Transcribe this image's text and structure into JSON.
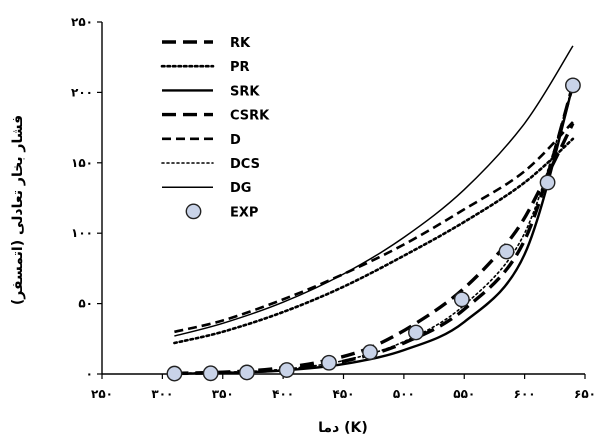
{
  "chart_data": {
    "type": "line",
    "xlabel": "دما (K)",
    "ylabel": "فشار بخار تعادلی (اتمسفر)",
    "xlim": [
      250,
      650
    ],
    "ylim": [
      0,
      250
    ],
    "x_ticks": [
      250,
      300,
      350,
      400,
      450,
      500,
      550,
      600,
      650
    ],
    "x_tick_labels": [
      "۲۵۰",
      "۳۰۰",
      "۳۵۰",
      "۴۰۰",
      "۴۵۰",
      "۵۰۰",
      "۵۵۰",
      "۶۰۰",
      "۶۵۰"
    ],
    "y_ticks": [
      0,
      50,
      100,
      150,
      200,
      250
    ],
    "y_tick_labels": [
      "۰",
      "۵۰",
      "۱۰۰",
      "۱۵۰",
      "۲۰۰",
      "۲۵۰"
    ],
    "grid": false,
    "legend": "top-left",
    "series": [
      {
        "name": "RK",
        "style": "long-dash",
        "stroke_weight": "bold",
        "x": [
          310,
          350,
          390,
          430,
          470,
          510,
          550,
          590,
          615,
          640
        ],
        "y": [
          0.5,
          1.3,
          3.5,
          8.5,
          18,
          36,
          61,
          98,
          135,
          178
        ]
      },
      {
        "name": "PR",
        "style": "dotted",
        "stroke_weight": "bold",
        "x": [
          310,
          350,
          400,
          450,
          500,
          550,
          600,
          640
        ],
        "y": [
          22,
          30,
          44,
          62,
          84,
          108,
          136,
          167
        ]
      },
      {
        "name": "SRK",
        "style": "solid",
        "stroke_weight": "bold",
        "x": [
          310,
          350,
          400,
          450,
          500,
          550,
          600,
          640
        ],
        "y": [
          0.3,
          0.8,
          2.5,
          7,
          17,
          37,
          85,
          205
        ]
      },
      {
        "name": "CSRK",
        "style": "long-dash",
        "stroke_weight": "bold",
        "x": [
          310,
          350,
          400,
          450,
          500,
          550,
          600,
          640
        ],
        "y": [
          0.4,
          1,
          3.2,
          9,
          22,
          46,
          95,
          205
        ]
      },
      {
        "name": "D",
        "style": "dashed",
        "stroke_weight": "bold",
        "x": [
          310,
          350,
          400,
          450,
          500,
          550,
          600,
          640
        ],
        "y": [
          30,
          38,
          53,
          71,
          92,
          117,
          144,
          179
        ]
      },
      {
        "name": "DCS",
        "style": "dotted",
        "stroke_weight": "normal",
        "x": [
          310,
          350,
          400,
          450,
          500,
          550,
          600,
          640
        ],
        "y": [
          0.5,
          1.2,
          3.4,
          9.5,
          23,
          49,
          100,
          205
        ]
      },
      {
        "name": "DG",
        "style": "solid",
        "stroke_weight": "normal",
        "x": [
          310,
          350,
          400,
          450,
          500,
          550,
          600,
          640
        ],
        "y": [
          27,
          36,
          51,
          71,
          97,
          131,
          178,
          233
        ]
      },
      {
        "name": "EXP",
        "style": "markers",
        "x": [
          310,
          340,
          370,
          403,
          438,
          472,
          510,
          548,
          585,
          619,
          640
        ],
        "y": [
          0.3,
          0.5,
          1.1,
          2.8,
          8,
          15.5,
          29.5,
          53,
          87,
          136,
          205
        ]
      }
    ]
  }
}
